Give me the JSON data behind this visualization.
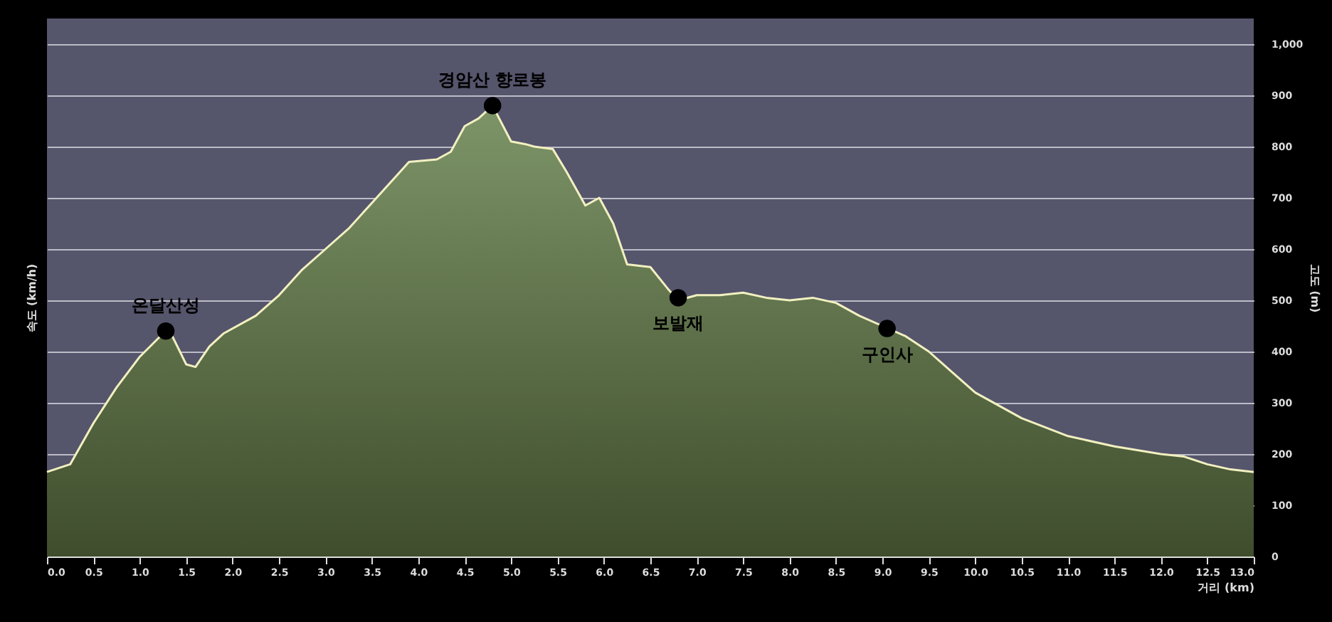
{
  "chart_data": {
    "type": "area",
    "xlabel": "거리 (km)",
    "ylabel": "속도 (km/h)",
    "y2label": "고도 (m)",
    "series": [
      {
        "color": "#7d9468",
        "axis": "y2",
        "x": [
          0,
          0.25,
          0.5,
          0.75,
          1.0,
          1.25,
          1.35,
          1.5,
          1.6,
          1.75,
          1.9,
          2.25,
          2.5,
          2.75,
          3.0,
          3.25,
          3.5,
          3.75,
          3.9,
          4.2,
          4.35,
          4.5,
          4.65,
          4.8,
          5.0,
          5.15,
          5.25,
          5.45,
          5.6,
          5.8,
          5.95,
          6.1,
          6.25,
          6.5,
          6.7,
          6.8,
          7.0,
          7.25,
          7.5,
          7.75,
          8.0,
          8.25,
          8.5,
          8.75,
          9.0,
          9.25,
          9.5,
          9.75,
          10.0,
          10.5,
          11.0,
          11.5,
          12.0,
          12.25,
          12.5,
          12.75,
          13.0
        ],
        "values": [
          165,
          180,
          260,
          330,
          390,
          435,
          430,
          375,
          370,
          410,
          435,
          470,
          510,
          560,
          600,
          640,
          690,
          740,
          770,
          775,
          790,
          840,
          855,
          880,
          810,
          805,
          800,
          795,
          750,
          685,
          700,
          650,
          570,
          565,
          520,
          500,
          510,
          510,
          515,
          505,
          500,
          505,
          495,
          470,
          450,
          430,
          400,
          360,
          320,
          270,
          235,
          215,
          200,
          195,
          180,
          170,
          165
        ]
      },
      {
        "type": "scatter",
        "color": "#000000",
        "axis": "y2",
        "marker": "circle",
        "x": [
          1.28,
          4.8,
          6.8,
          9.05
        ],
        "values": [
          440,
          880,
          505,
          445
        ]
      }
    ],
    "annotations": [
      "온달산성",
      "경암산 향로봉",
      "보발재",
      "구인사"
    ],
    "xlim": [
      0,
      13
    ],
    "xticks": [
      {
        "value": 0,
        "label": "0.0"
      },
      {
        "value": 0.5,
        "label": "0.5"
      },
      {
        "value": 1,
        "label": "1.0"
      },
      {
        "value": 1.5,
        "label": "1.5"
      },
      {
        "value": 2,
        "label": "2.0"
      },
      {
        "value": 2.5,
        "label": "2.5"
      },
      {
        "value": 3,
        "label": "3.0"
      },
      {
        "value": 3.5,
        "label": "3.5"
      },
      {
        "value": 4,
        "label": "4.0"
      },
      {
        "value": 4.5,
        "label": "4.5"
      },
      {
        "value": 5,
        "label": "5.0"
      },
      {
        "value": 5.5,
        "label": "5.5"
      },
      {
        "value": 6,
        "label": "6.0"
      },
      {
        "value": 6.5,
        "label": "6.5"
      },
      {
        "value": 7,
        "label": "7.0"
      },
      {
        "value": 7.5,
        "label": "7.5"
      },
      {
        "value": 8,
        "label": "8.0"
      },
      {
        "value": 8.5,
        "label": "8.5"
      },
      {
        "value": 9,
        "label": "9.0"
      },
      {
        "value": 9.5,
        "label": "9.5"
      },
      {
        "value": 10,
        "label": "10.0"
      },
      {
        "value": 10.5,
        "label": "10.5"
      },
      {
        "value": 11,
        "label": "11.0"
      },
      {
        "value": 11.5,
        "label": "11.5"
      },
      {
        "value": 12,
        "label": "12.0"
      },
      {
        "value": 12.5,
        "label": "12.5"
      },
      {
        "value": 13,
        "label": "13.0"
      }
    ],
    "y2lim": [
      0,
      1050
    ],
    "y2ticks": [
      0,
      100,
      200,
      300,
      400,
      500,
      600,
      700,
      800,
      900,
      {
        "value": 1000,
        "label": "1,000"
      }
    ],
    "grid": "y"
  }
}
